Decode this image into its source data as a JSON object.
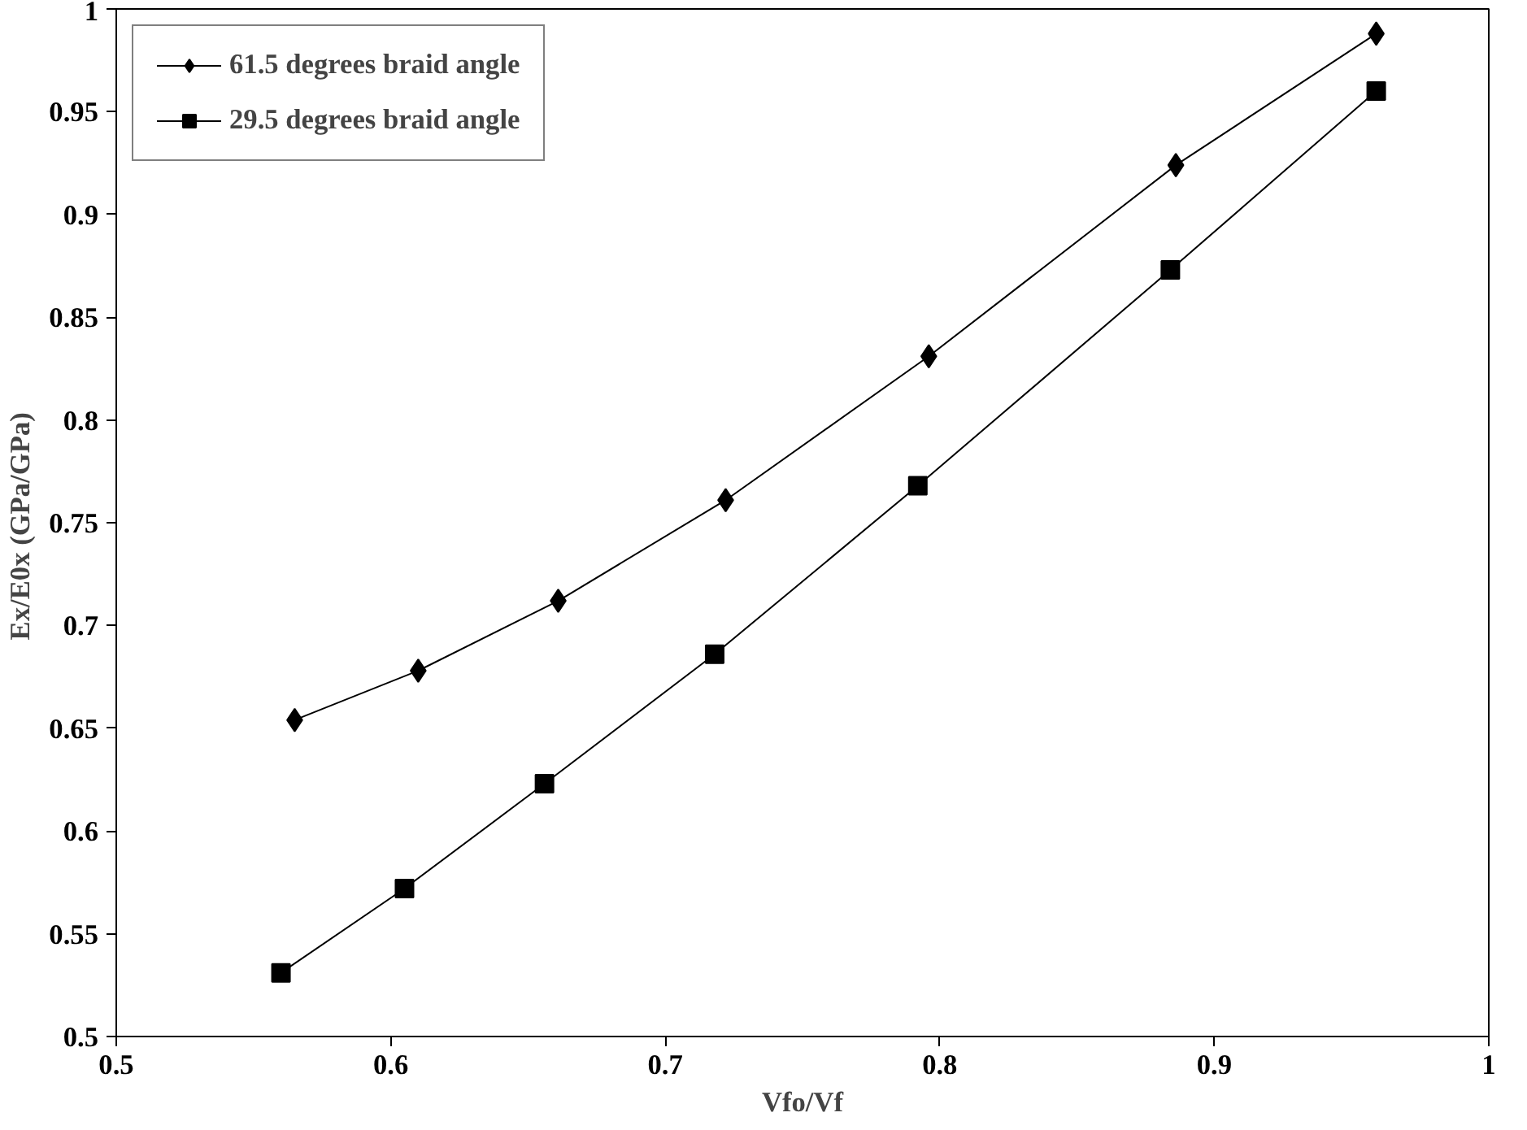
{
  "chart_data": {
    "type": "line",
    "xlabel": "Vfo/Vf",
    "ylabel": "Ex/E0x  (GPa/GPa)",
    "xlim": [
      0.5,
      1
    ],
    "xticks": [
      0.5,
      0.6,
      0.7,
      0.8,
      0.9,
      1
    ],
    "ylim": [
      0.5,
      1
    ],
    "yticks": [
      0.5,
      0.55,
      0.6,
      0.65,
      0.7,
      0.75,
      0.8,
      0.85,
      0.9,
      0.95,
      1
    ],
    "grid": false,
    "legend": "top left",
    "series": [
      {
        "name": "61.5 degrees braid angle",
        "color": "#000000",
        "marker": "diamond",
        "x": [
          0.565,
          0.61,
          0.661,
          0.722,
          0.796,
          0.886,
          0.959
        ],
        "values": [
          0.654,
          0.678,
          0.712,
          0.761,
          0.831,
          0.924,
          0.988
        ]
      },
      {
        "name": "29.5 degrees braid angle",
        "color": "#000000",
        "marker": "square",
        "x": [
          0.56,
          0.605,
          0.656,
          0.718,
          0.792,
          0.884,
          0.959
        ],
        "values": [
          0.531,
          0.572,
          0.623,
          0.686,
          0.768,
          0.873,
          0.96
        ]
      }
    ]
  }
}
